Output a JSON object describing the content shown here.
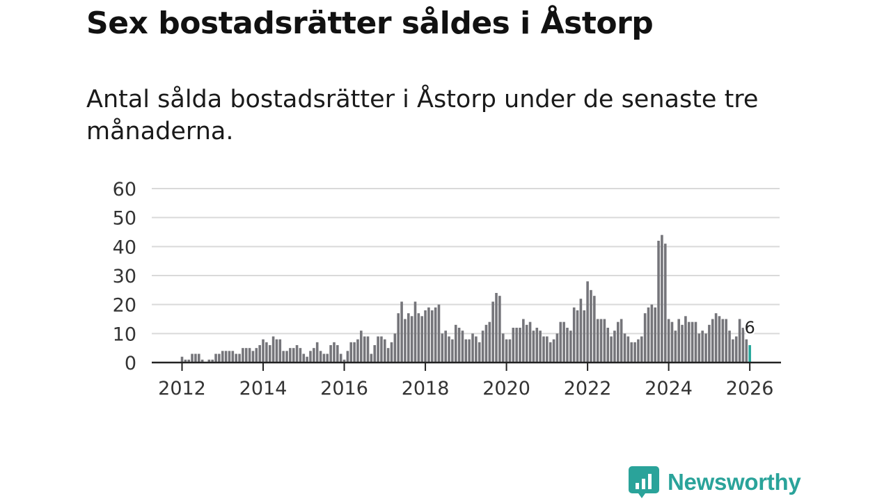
{
  "title": "Sex bostadsrätter såldes i Åstorp",
  "subtitle": "Antal sålda bostadsrätter i Åstorp under de senaste tre månaderna.",
  "brand": {
    "name": "Newsworthy",
    "color": "#2aa39a"
  },
  "chart_data": {
    "type": "bar",
    "title": "Sex bostadsrätter såldes i Åstorp",
    "xlabel": "",
    "ylabel": "",
    "ylim": [
      0,
      60
    ],
    "yticks": [
      0,
      10,
      20,
      30,
      40,
      50,
      60
    ],
    "yticklabels": [
      "0",
      "10",
      "20",
      "30",
      "40",
      "50",
      "60"
    ],
    "xticklabels": [
      "2012",
      "2014",
      "2016",
      "2018",
      "2020",
      "2022",
      "2024",
      "2026"
    ],
    "grid": true,
    "bar_color": "#75757a",
    "highlight_color": "#25a79b",
    "start_month": "2011-08",
    "annotation": {
      "label": "6",
      "month": "2026-01"
    },
    "values": [
      0,
      0,
      0,
      0,
      0,
      2,
      1,
      1,
      3,
      3,
      3,
      1,
      0,
      1,
      1,
      3,
      3,
      4,
      4,
      4,
      4,
      3,
      3,
      5,
      5,
      5,
      4,
      5,
      6,
      8,
      7,
      6,
      9,
      8,
      8,
      4,
      4,
      5,
      5,
      6,
      5,
      3,
      2,
      4,
      5,
      7,
      4,
      3,
      3,
      6,
      7,
      6,
      3,
      1,
      4,
      7,
      7,
      8,
      11,
      9,
      9,
      3,
      6,
      9,
      9,
      8,
      5,
      7,
      10,
      17,
      21,
      15,
      17,
      16,
      21,
      17,
      16,
      18,
      19,
      18,
      19,
      20,
      10,
      11,
      9,
      8,
      13,
      12,
      11,
      8,
      8,
      10,
      9,
      7,
      11,
      13,
      14,
      21,
      24,
      23,
      10,
      8,
      8,
      12,
      12,
      12,
      15,
      13,
      14,
      11,
      12,
      11,
      9,
      9,
      7,
      8,
      10,
      14,
      14,
      12,
      11,
      19,
      18,
      22,
      18,
      28,
      25,
      23,
      15,
      15,
      15,
      12,
      9,
      11,
      14,
      15,
      10,
      9,
      7,
      7,
      8,
      9,
      17,
      19,
      20,
      19,
      42,
      44,
      41,
      15,
      14,
      11,
      15,
      13,
      16,
      14,
      14,
      14,
      10,
      11,
      10,
      13,
      15,
      17,
      16,
      15,
      15,
      11,
      8,
      9,
      15,
      12,
      8,
      6
    ]
  }
}
